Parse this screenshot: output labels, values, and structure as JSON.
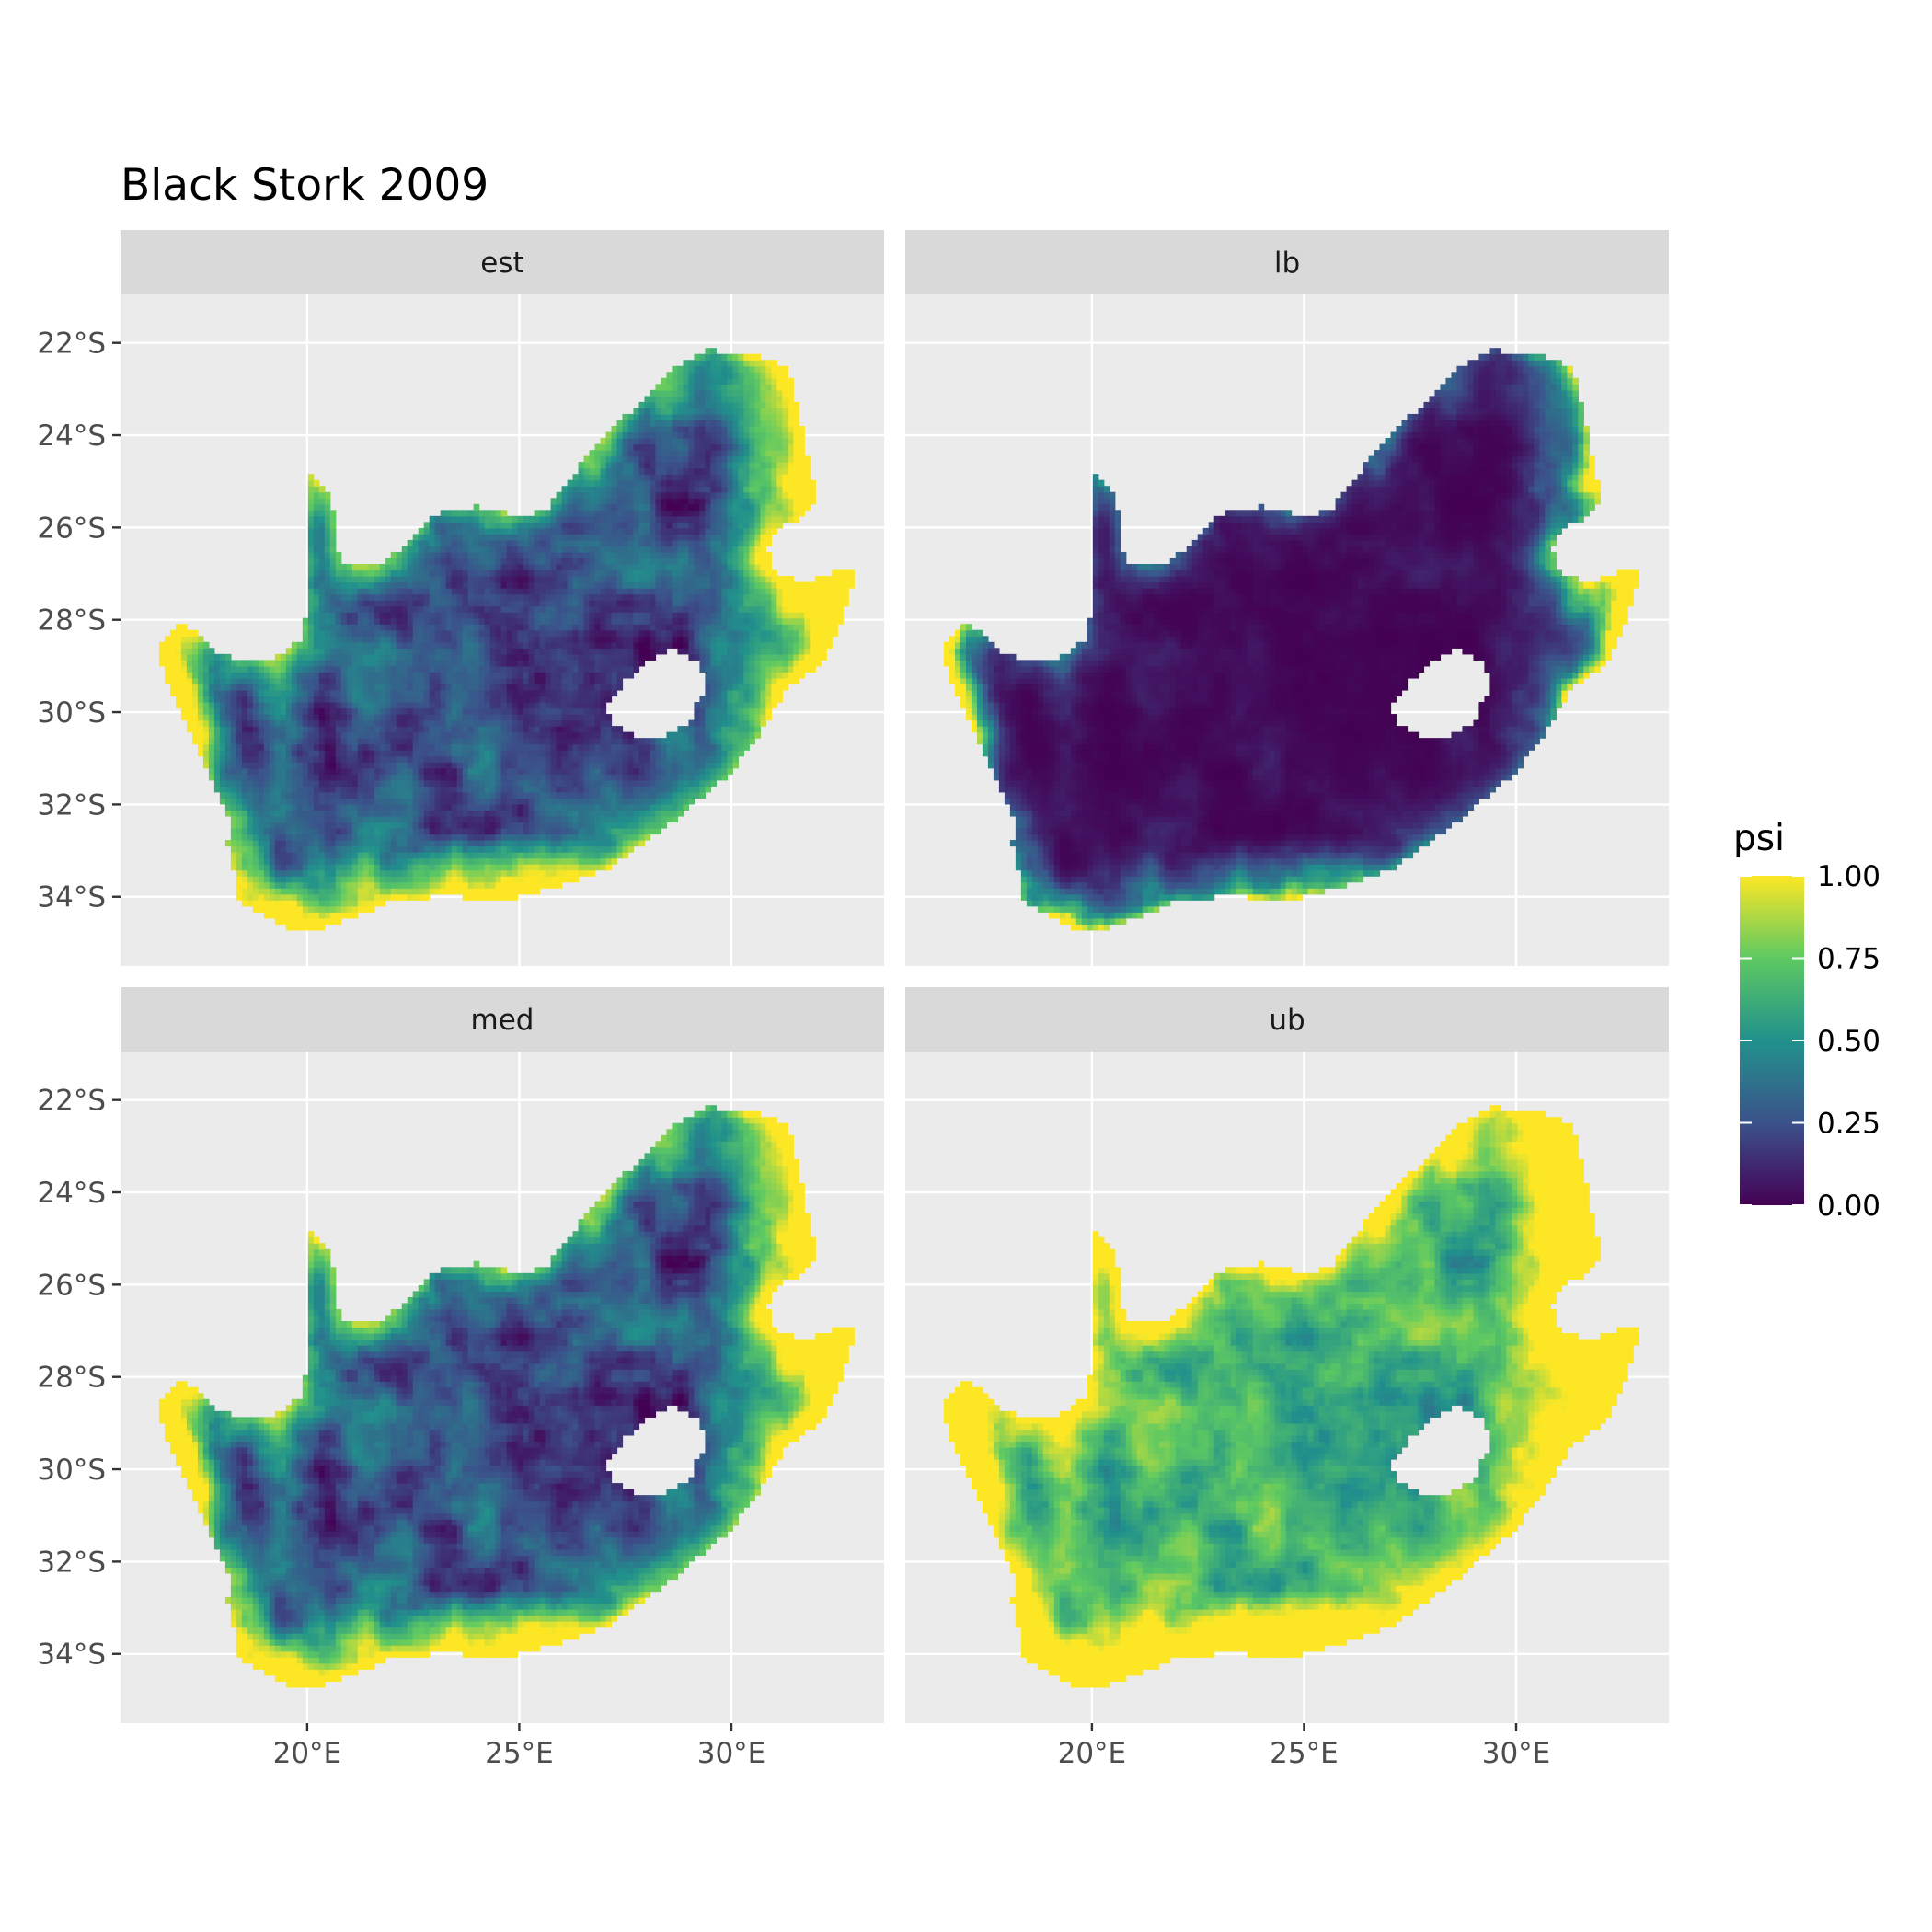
{
  "title": "Black Stork 2009",
  "colors": {
    "panel_background": "#ebebeb",
    "strip_background": "#d9d9d9",
    "gridline": "#ffffff",
    "tick": "#333333",
    "viridis": [
      "#440154",
      "#3b528b",
      "#21918c",
      "#5ec962",
      "#fde725"
    ]
  },
  "chart_data": {
    "type": "heatmap",
    "title": "Black Stork 2009",
    "xlabel": "",
    "ylabel": "",
    "x_ticks": [
      {
        "value": 20,
        "label": "20°E"
      },
      {
        "value": 25,
        "label": "25°E"
      },
      {
        "value": 30,
        "label": "30°E"
      }
    ],
    "y_ticks": [
      {
        "value": -22,
        "label": "22°S"
      },
      {
        "value": -24,
        "label": "24°S"
      },
      {
        "value": -26,
        "label": "26°S"
      },
      {
        "value": -28,
        "label": "28°S"
      },
      {
        "value": -30,
        "label": "30°S"
      },
      {
        "value": -32,
        "label": "32°S"
      },
      {
        "value": -34,
        "label": "34°S"
      }
    ],
    "xlim": [
      15.6,
      33.6
    ],
    "ylim": [
      -35.5,
      -20.95
    ],
    "grid": true,
    "legend": {
      "title": "psi",
      "position": "right",
      "range": [
        0,
        1
      ],
      "breaks": [
        {
          "value": 0,
          "label": "0.00"
        },
        {
          "value": 0.25,
          "label": "0.25"
        },
        {
          "value": 0.5,
          "label": "0.50"
        },
        {
          "value": 0.75,
          "label": "0.75"
        },
        {
          "value": 1,
          "label": "1.00"
        }
      ]
    },
    "facets": [
      {
        "label": "est"
      },
      {
        "label": "lb"
      },
      {
        "label": "med"
      },
      {
        "label": "ub"
      }
    ],
    "outline": [
      [
        16.45,
        -28.6
      ],
      [
        17.0,
        -28.05
      ],
      [
        17.3,
        -28.2
      ],
      [
        17.8,
        -28.7
      ],
      [
        18.5,
        -28.9
      ],
      [
        19.1,
        -28.9
      ],
      [
        19.6,
        -28.6
      ],
      [
        19.95,
        -28.35
      ],
      [
        19.97,
        -26.6
      ],
      [
        20.0,
        -24.8
      ],
      [
        20.45,
        -25.2
      ],
      [
        20.7,
        -25.9
      ],
      [
        20.75,
        -26.85
      ],
      [
        21.7,
        -26.85
      ],
      [
        22.5,
        -26.2
      ],
      [
        23.0,
        -25.7
      ],
      [
        24.0,
        -25.55
      ],
      [
        25.0,
        -25.75
      ],
      [
        25.6,
        -25.65
      ],
      [
        26.4,
        -24.7
      ],
      [
        27.0,
        -24.0
      ],
      [
        27.6,
        -23.5
      ],
      [
        28.6,
        -22.6
      ],
      [
        29.4,
        -22.15
      ],
      [
        30.5,
        -22.25
      ],
      [
        31.3,
        -22.5
      ],
      [
        31.55,
        -23.3
      ],
      [
        31.8,
        -24.5
      ],
      [
        32.0,
        -25.35
      ],
      [
        31.7,
        -25.75
      ],
      [
        31.2,
        -25.95
      ],
      [
        30.85,
        -26.4
      ],
      [
        30.95,
        -26.9
      ],
      [
        31.6,
        -27.2
      ],
      [
        32.1,
        -27.1
      ],
      [
        32.6,
        -26.9
      ],
      [
        32.95,
        -26.9
      ],
      [
        32.6,
        -28.0
      ],
      [
        32.2,
        -28.9
      ],
      [
        31.3,
        -29.5
      ],
      [
        30.7,
        -30.4
      ],
      [
        30.0,
        -31.3
      ],
      [
        29.2,
        -31.9
      ],
      [
        28.3,
        -32.6
      ],
      [
        27.1,
        -33.4
      ],
      [
        25.8,
        -33.8
      ],
      [
        25.0,
        -34.0
      ],
      [
        24.2,
        -34.1
      ],
      [
        23.3,
        -33.95
      ],
      [
        22.0,
        -34.1
      ],
      [
        21.0,
        -34.45
      ],
      [
        20.0,
        -34.8
      ],
      [
        19.4,
        -34.6
      ],
      [
        18.8,
        -34.3
      ],
      [
        18.4,
        -34.1
      ],
      [
        18.3,
        -33.5
      ],
      [
        18.1,
        -32.8
      ],
      [
        18.25,
        -32.4
      ],
      [
        17.9,
        -31.8
      ],
      [
        17.3,
        -30.6
      ],
      [
        16.8,
        -29.6
      ],
      [
        16.45,
        -28.6
      ]
    ],
    "holes": [
      [
        [
          27.0,
          -29.9
        ],
        [
          27.5,
          -29.3
        ],
        [
          28.0,
          -28.9
        ],
        [
          28.6,
          -28.6
        ],
        [
          29.2,
          -28.9
        ],
        [
          29.45,
          -29.4
        ],
        [
          29.2,
          -29.8
        ],
        [
          29.0,
          -30.25
        ],
        [
          28.3,
          -30.6
        ],
        [
          27.7,
          -30.5
        ],
        [
          27.2,
          -30.25
        ],
        [
          27.0,
          -29.9
        ]
      ]
    ]
  }
}
